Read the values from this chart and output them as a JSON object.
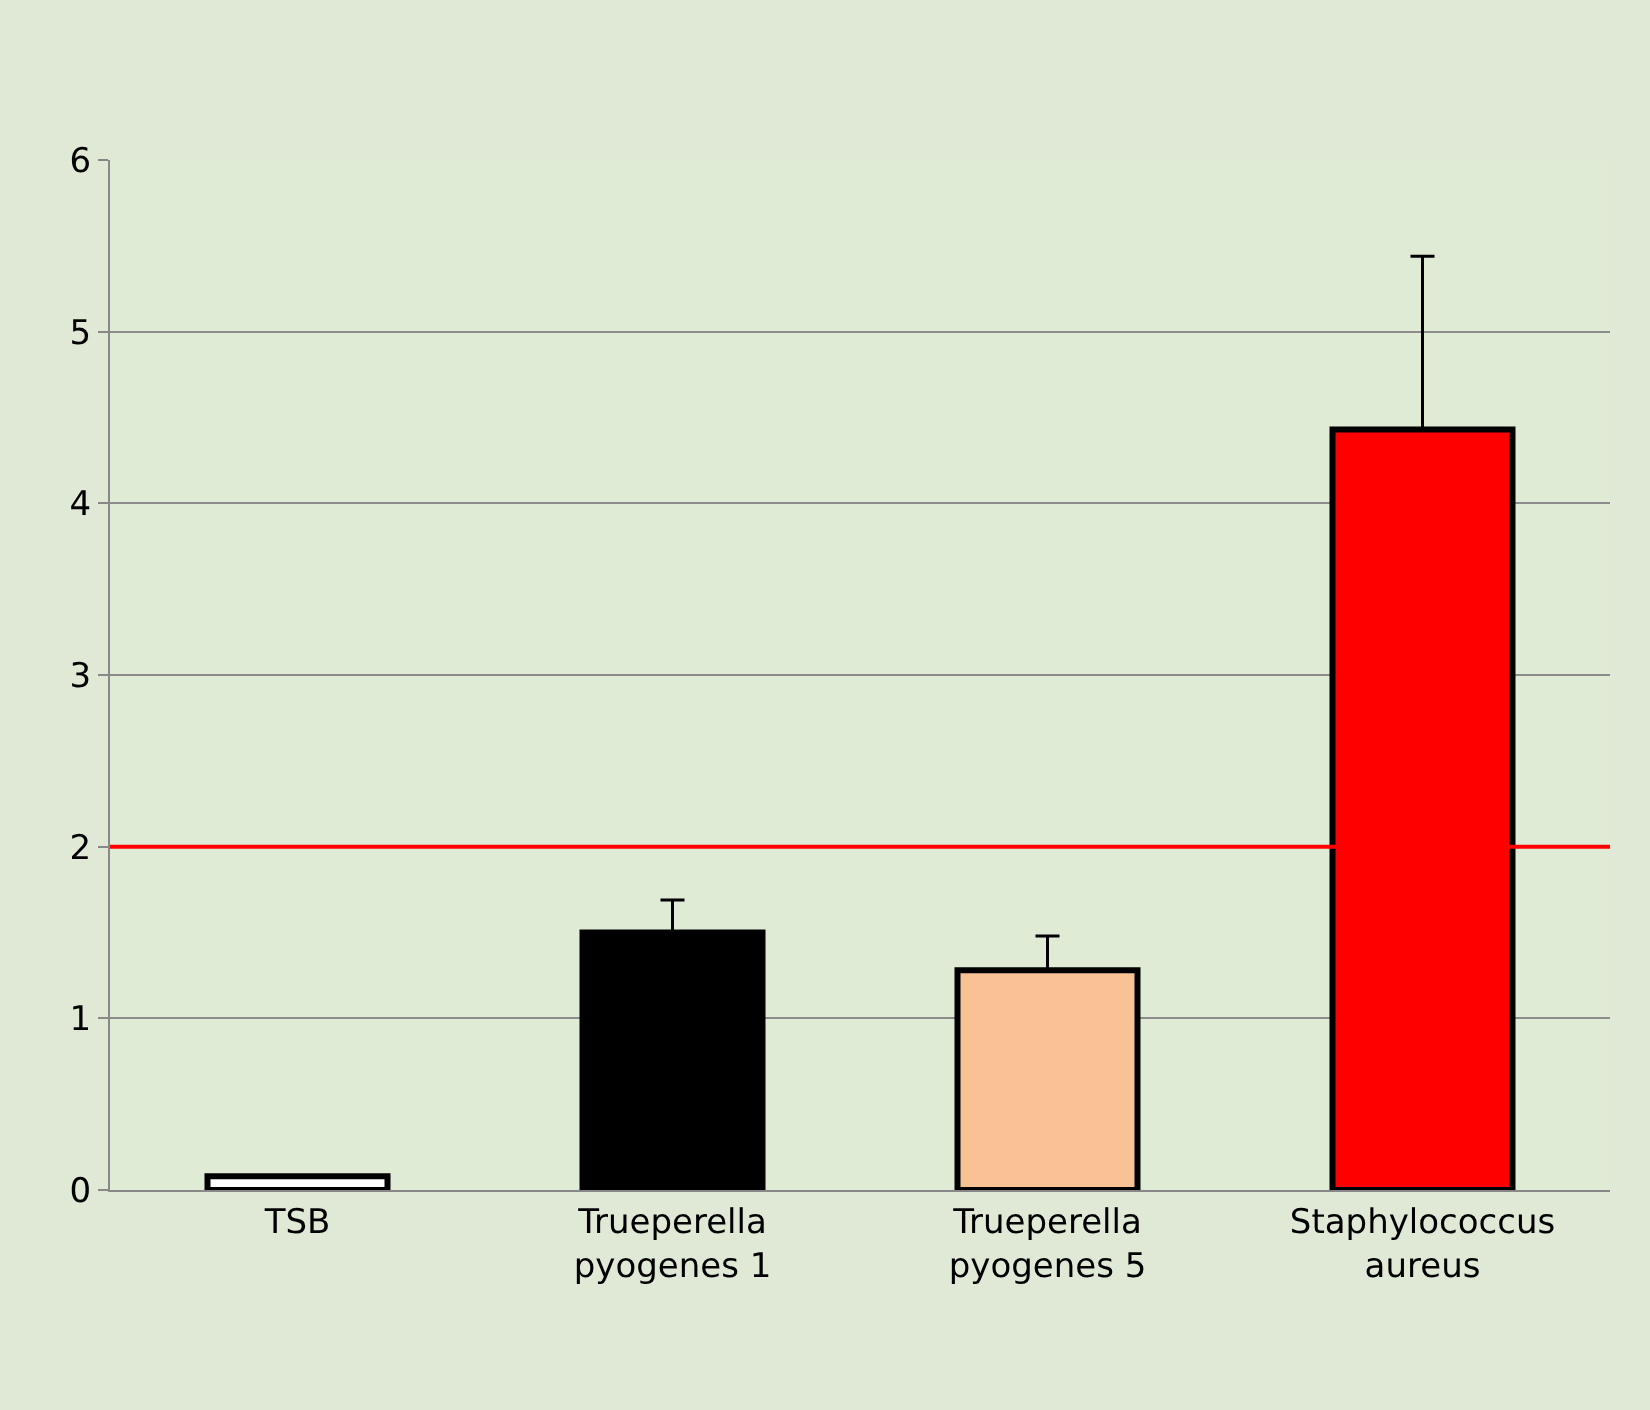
{
  "chart_data": {
    "type": "bar",
    "categories": [
      "TSB",
      "Trueperella pyogenes 1",
      "Trueperella pyogenes 5",
      "Staphylococcus aureus"
    ],
    "values": [
      0.08,
      1.5,
      1.28,
      4.43
    ],
    "colors": [
      "#ffffff",
      "#000000",
      "#f8c294",
      "#ff0000"
    ],
    "errors": [
      null,
      [
        1.5,
        1.69
      ],
      [
        1.28,
        1.48
      ],
      [
        4.43,
        5.44
      ]
    ],
    "ylim": [
      0,
      6
    ],
    "yticks": [
      0,
      1,
      2,
      3,
      4,
      5,
      6
    ],
    "grid": "y",
    "ref_lines": [
      {
        "axis": "y",
        "value": 2,
        "color": "#ff0000"
      }
    ]
  }
}
